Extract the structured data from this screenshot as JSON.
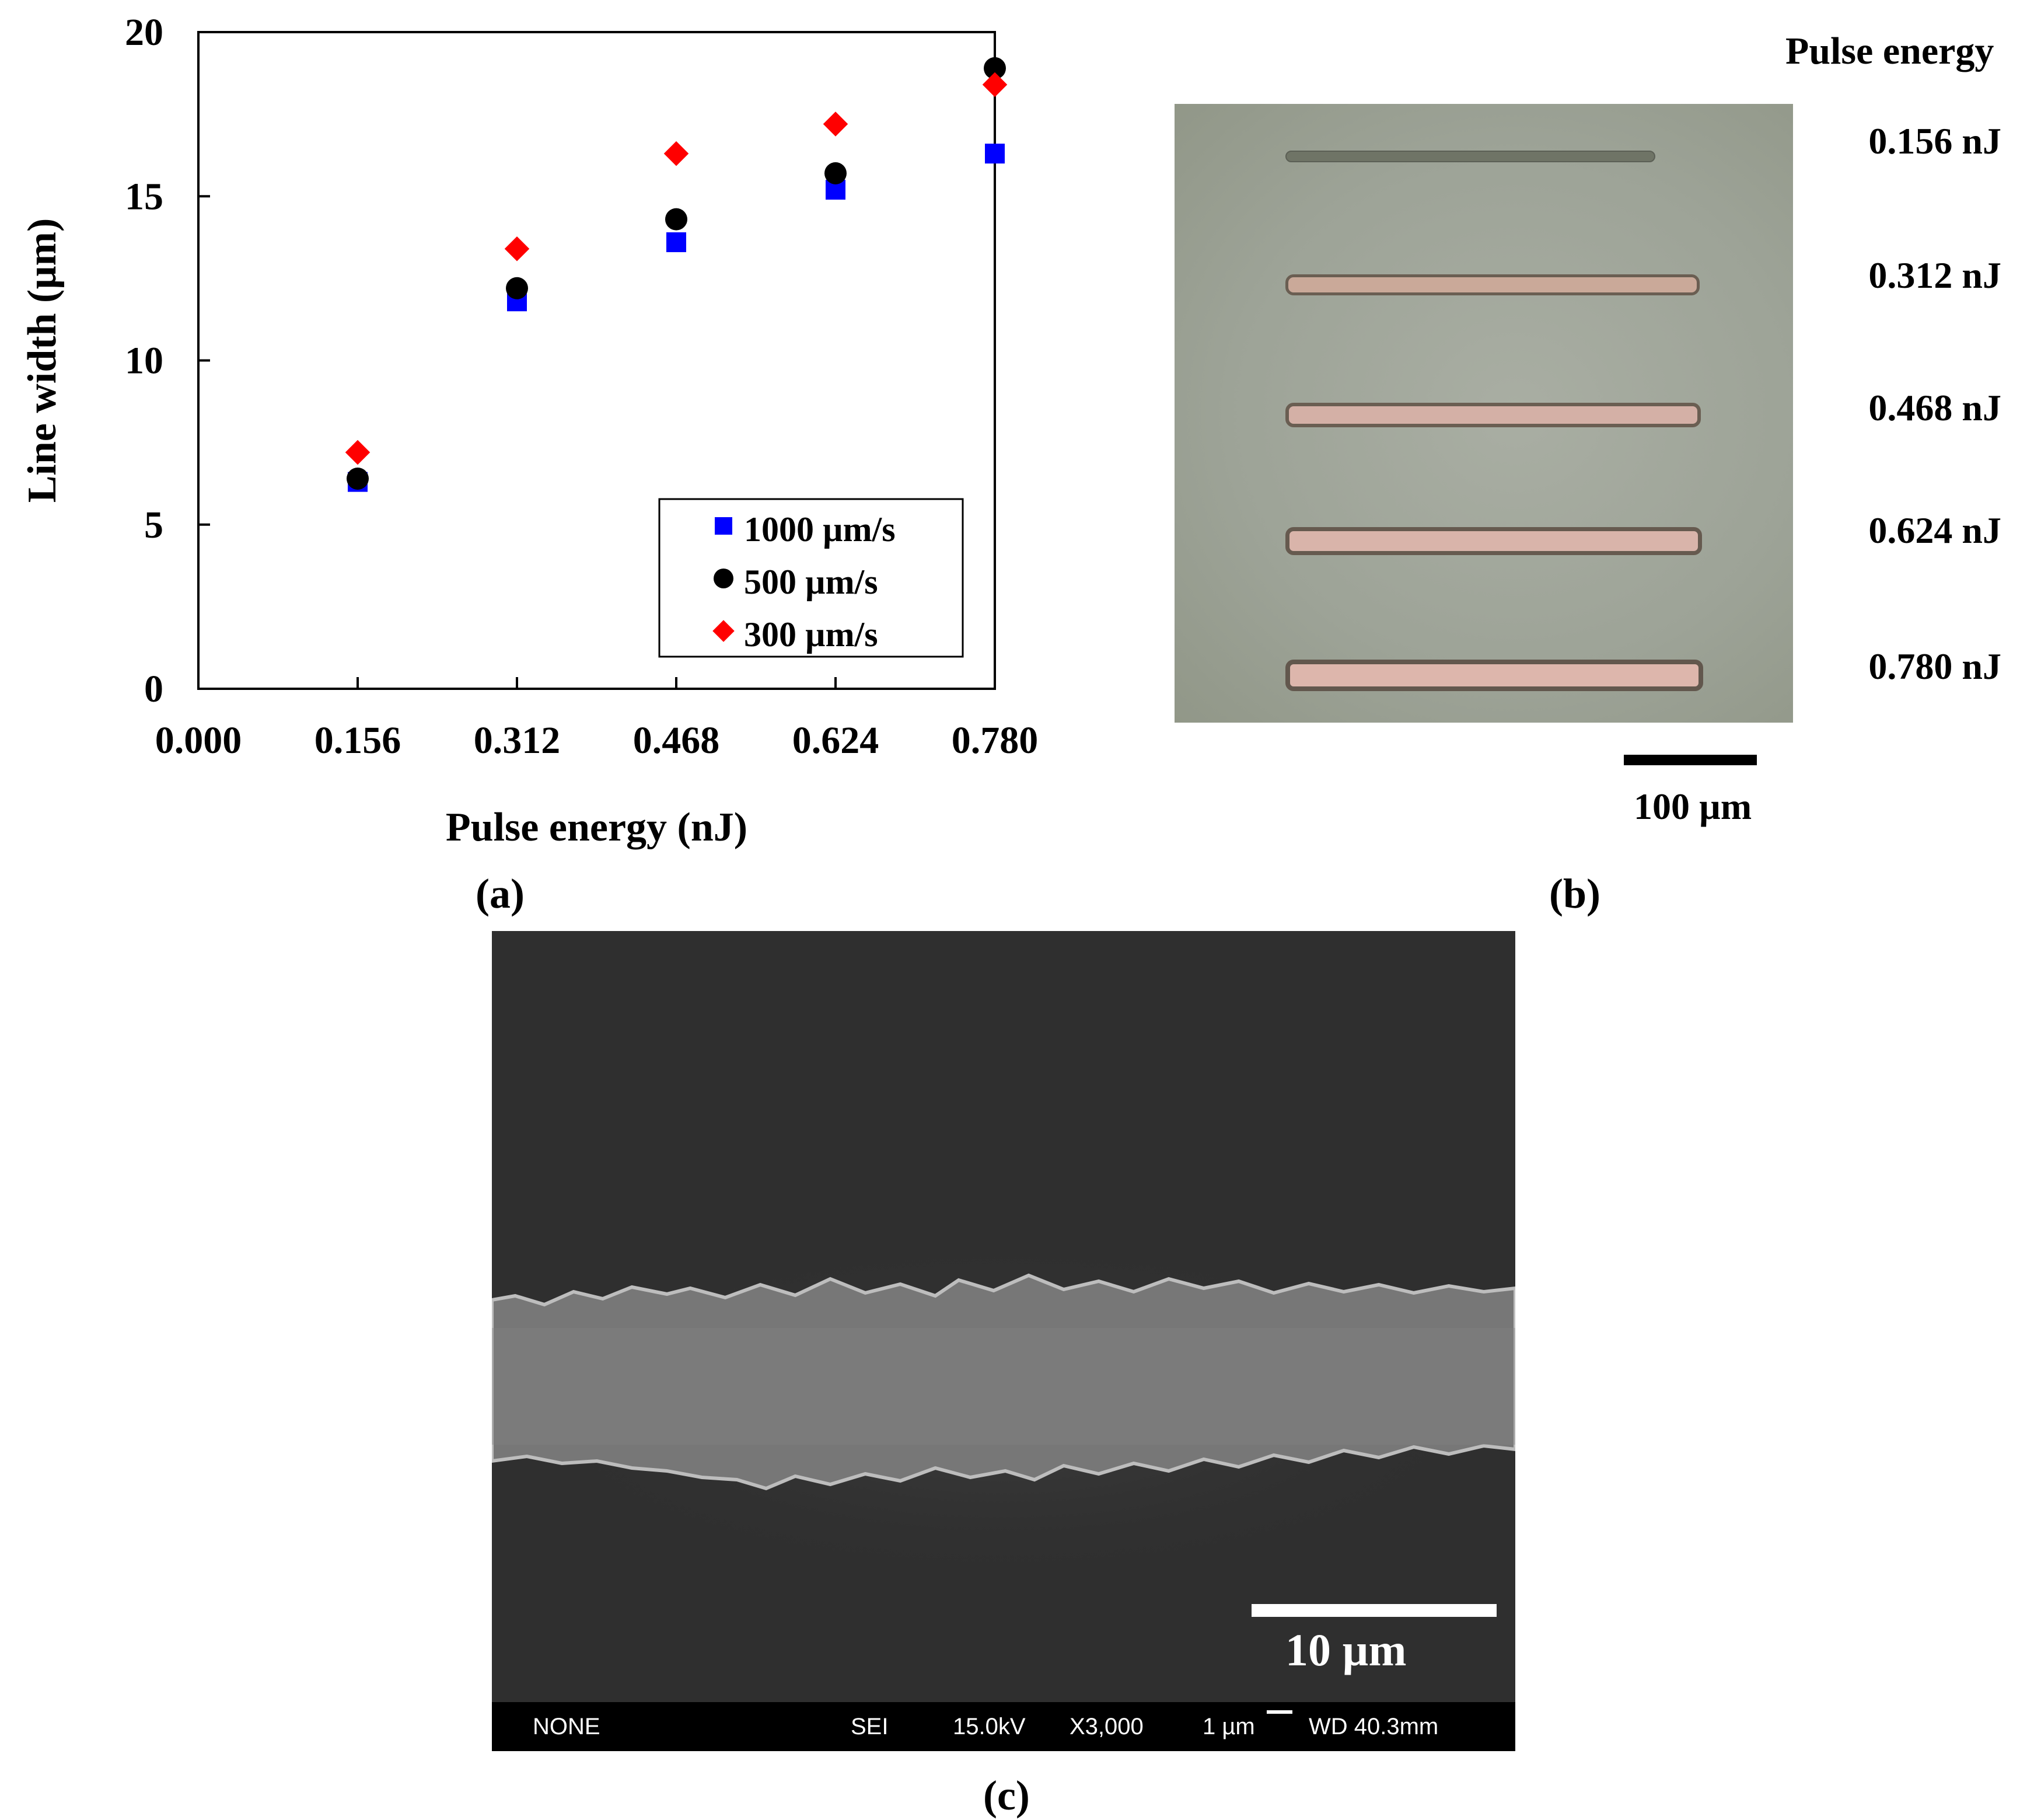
{
  "panel_labels": {
    "a": "(a)",
    "b": "(b)",
    "c": "(c)"
  },
  "chart_data": {
    "type": "scatter",
    "xlabel": "Pulse energy (nJ)",
    "ylabel": "Line width (µm)",
    "xlim": [
      0.0,
      0.78
    ],
    "ylim": [
      0,
      20
    ],
    "x_ticks": [
      "0.000",
      "0.156",
      "0.312",
      "0.468",
      "0.624",
      "0.780"
    ],
    "y_ticks": [
      "0",
      "5",
      "10",
      "15",
      "20"
    ],
    "grid": false,
    "legend_position": "bottom-right",
    "series": [
      {
        "name": "1000 µm/s",
        "marker": "square",
        "color": "#0000ff",
        "x": [
          0.156,
          0.312,
          0.468,
          0.624,
          0.78
        ],
        "y": [
          6.3,
          11.8,
          13.6,
          15.2,
          16.3
        ]
      },
      {
        "name": "500 µm/s",
        "marker": "circle",
        "color": "#000000",
        "x": [
          0.156,
          0.312,
          0.468,
          0.624,
          0.78
        ],
        "y": [
          6.4,
          12.2,
          14.3,
          15.7,
          18.9
        ]
      },
      {
        "name": "300 µm/s",
        "marker": "diamond",
        "color": "#ff0000",
        "x": [
          0.156,
          0.312,
          0.468,
          0.624,
          0.78
        ],
        "y": [
          7.2,
          13.4,
          16.3,
          17.2,
          18.4
        ]
      }
    ]
  },
  "micrograph_b": {
    "header": "Pulse energy",
    "energies": [
      "0.156 nJ",
      "0.312 nJ",
      "0.468 nJ",
      "0.624 nJ",
      "0.780 nJ"
    ],
    "scale_label": "100 µm"
  },
  "sem_c": {
    "scale_label": "10 µm",
    "info_bar": {
      "label": "NONE",
      "mode": "SEI",
      "voltage": "15.0kV",
      "magnification": "X3,000",
      "scale": "1 µm",
      "wd": "WD 40.3mm"
    }
  }
}
